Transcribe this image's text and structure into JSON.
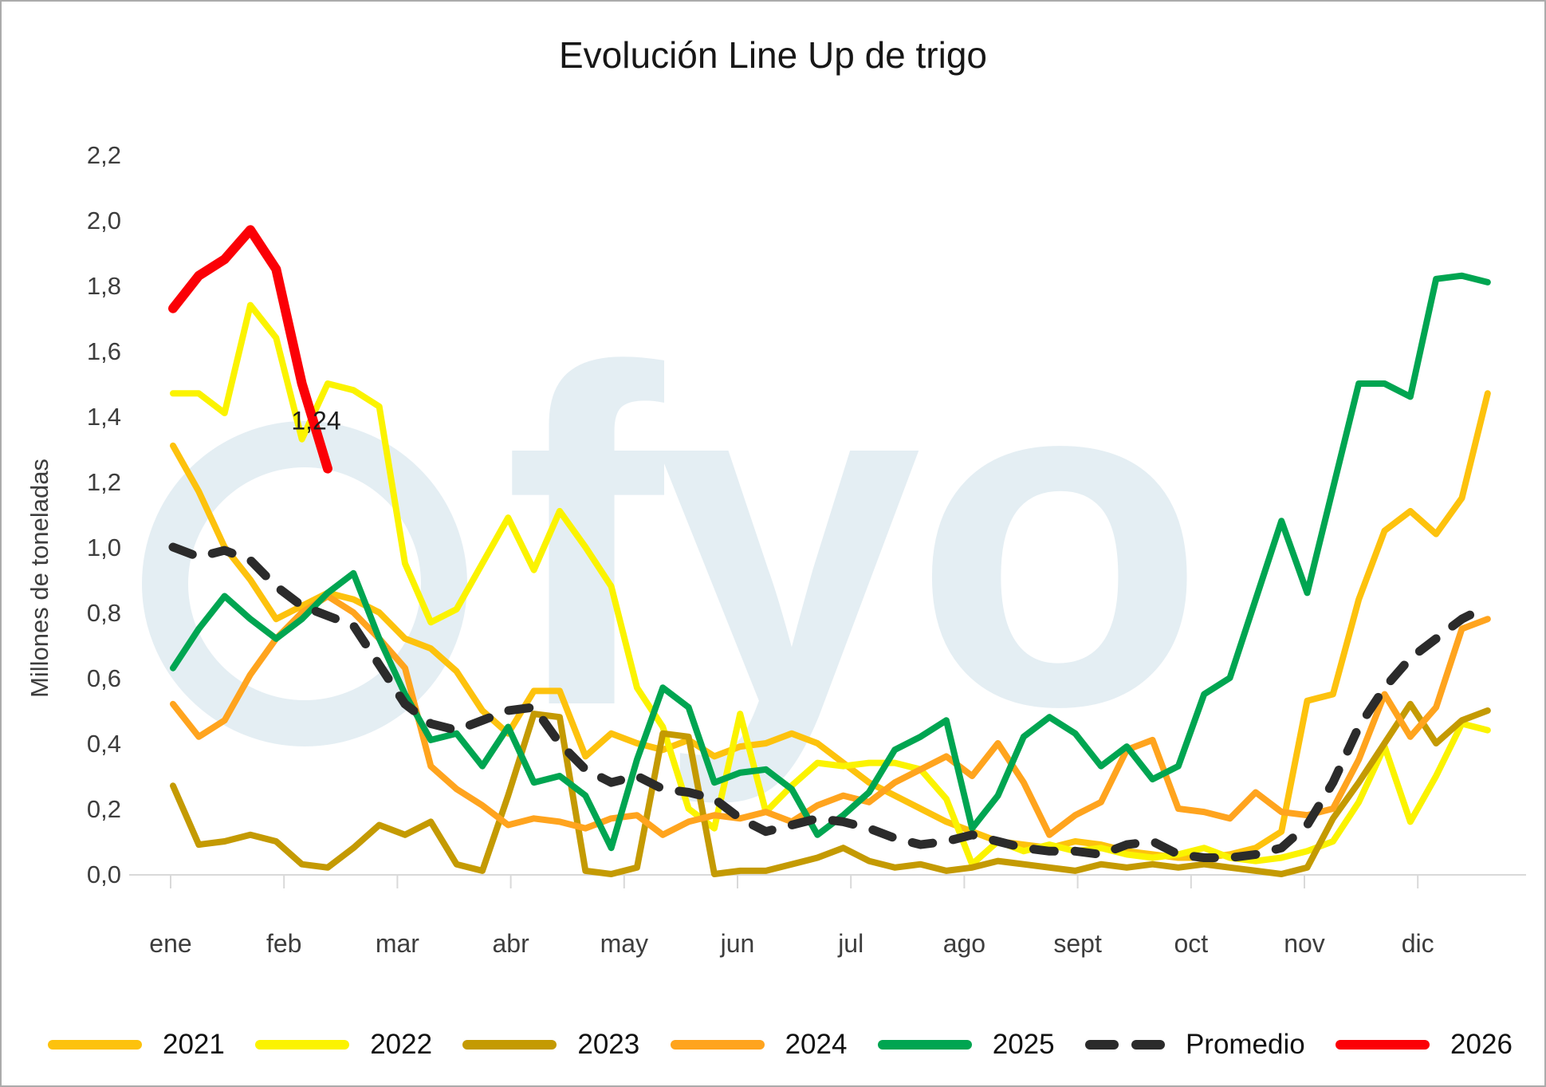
{
  "title": "Evolución Line Up de trigo",
  "y_axis": {
    "label": "Millones de toneladas",
    "ticks": [
      "0,0",
      "0,2",
      "0,4",
      "0,6",
      "0,8",
      "1,0",
      "1,2",
      "1,4",
      "1,6",
      "1,8",
      "2,0",
      "2,2"
    ],
    "min": 0.0,
    "max": 2.2,
    "step": 0.2
  },
  "x_axis": {
    "months": [
      "ene",
      "feb",
      "mar",
      "abr",
      "may",
      "jun",
      "jul",
      "ago",
      "sept",
      "oct",
      "nov",
      "dic"
    ]
  },
  "annotation": {
    "text": "1,24",
    "week": 6.8,
    "value": 1.36
  },
  "watermark": {
    "text": "fyo",
    "color": "#e4eef3"
  },
  "legend": [
    {
      "id": "y2021",
      "label": "2021",
      "color": "#fdc20d",
      "dashed": false
    },
    {
      "id": "y2022",
      "label": "2022",
      "color": "#fbf300",
      "dashed": false
    },
    {
      "id": "y2023",
      "label": "2023",
      "color": "#c49a02",
      "dashed": false
    },
    {
      "id": "y2024",
      "label": "2024",
      "color": "#ffa41e",
      "dashed": false
    },
    {
      "id": "y2025",
      "label": "2025",
      "color": "#00a551",
      "dashed": false
    },
    {
      "id": "promedio",
      "label": "Promedio",
      "color": "#2b2b2b",
      "dashed": true
    },
    {
      "id": "y2026",
      "label": "2026",
      "color": "#fb0006",
      "dashed": false
    }
  ],
  "chart_data": {
    "type": "line",
    "title": "Evolución Line Up de trigo",
    "xlabel": "",
    "ylabel": "Millones de toneladas",
    "ylim": [
      0.0,
      2.2
    ],
    "x_unit": "semana del año (1-52)",
    "grid": false,
    "legend_position": "bottom",
    "x": [
      1,
      2,
      3,
      4,
      5,
      6,
      7,
      8,
      9,
      10,
      11,
      12,
      13,
      14,
      15,
      16,
      17,
      18,
      19,
      20,
      21,
      22,
      23,
      24,
      25,
      26,
      27,
      28,
      29,
      30,
      31,
      32,
      33,
      34,
      35,
      36,
      37,
      38,
      39,
      40,
      41,
      42,
      43,
      44,
      45,
      46,
      47,
      48,
      49,
      50,
      51,
      52
    ],
    "series": [
      {
        "name": "2021",
        "color": "#fdc20d",
        "width": 8,
        "dashed": false,
        "values": [
          1.31,
          1.17,
          1.0,
          0.9,
          0.78,
          0.82,
          0.86,
          0.84,
          0.8,
          0.72,
          0.69,
          0.62,
          0.5,
          0.43,
          0.56,
          0.56,
          0.36,
          0.43,
          0.4,
          0.38,
          0.41,
          0.36,
          0.39,
          0.4,
          0.43,
          0.4,
          0.34,
          0.28,
          0.24,
          0.2,
          0.16,
          0.13,
          0.1,
          0.09,
          0.08,
          0.1,
          0.09,
          0.07,
          0.06,
          0.05,
          0.05,
          0.06,
          0.08,
          0.13,
          0.53,
          0.55,
          0.84,
          1.05,
          1.11,
          1.04,
          1.15,
          1.47
        ]
      },
      {
        "name": "2022",
        "color": "#fbf300",
        "width": 8,
        "dashed": false,
        "values": [
          1.47,
          1.47,
          1.41,
          1.74,
          1.64,
          1.33,
          1.5,
          1.48,
          1.43,
          0.95,
          0.77,
          0.81,
          0.95,
          1.09,
          0.93,
          1.11,
          1.0,
          0.88,
          0.57,
          0.45,
          0.2,
          0.14,
          0.49,
          0.19,
          0.27,
          0.34,
          0.33,
          0.34,
          0.34,
          0.32,
          0.23,
          0.03,
          0.1,
          0.07,
          0.09,
          0.07,
          0.08,
          0.06,
          0.05,
          0.06,
          0.08,
          0.05,
          0.04,
          0.05,
          0.07,
          0.1,
          0.22,
          0.39,
          0.16,
          0.3,
          0.46,
          0.44
        ]
      },
      {
        "name": "2023",
        "color": "#c49a02",
        "width": 8,
        "dashed": false,
        "values": [
          0.27,
          0.09,
          0.1,
          0.12,
          0.1,
          0.03,
          0.02,
          0.08,
          0.15,
          0.12,
          0.16,
          0.03,
          0.01,
          0.24,
          0.49,
          0.48,
          0.01,
          0.0,
          0.02,
          0.43,
          0.42,
          0.0,
          0.01,
          0.01,
          0.03,
          0.05,
          0.08,
          0.04,
          0.02,
          0.03,
          0.01,
          0.02,
          0.04,
          0.03,
          0.02,
          0.01,
          0.03,
          0.02,
          0.03,
          0.02,
          0.03,
          0.02,
          0.01,
          0.0,
          0.02,
          0.17,
          0.28,
          0.4,
          0.52,
          0.4,
          0.47,
          0.5
        ]
      },
      {
        "name": "2024",
        "color": "#ffa41e",
        "width": 8,
        "dashed": false,
        "values": [
          0.52,
          0.42,
          0.47,
          0.61,
          0.72,
          0.8,
          0.85,
          0.8,
          0.72,
          0.63,
          0.33,
          0.26,
          0.21,
          0.15,
          0.17,
          0.16,
          0.14,
          0.17,
          0.18,
          0.12,
          0.16,
          0.18,
          0.17,
          0.19,
          0.16,
          0.21,
          0.24,
          0.22,
          0.28,
          0.32,
          0.36,
          0.3,
          0.4,
          0.28,
          0.12,
          0.18,
          0.22,
          0.38,
          0.41,
          0.2,
          0.19,
          0.17,
          0.25,
          0.19,
          0.18,
          0.2,
          0.35,
          0.55,
          0.42,
          0.51,
          0.75,
          0.78
        ]
      },
      {
        "name": "2025",
        "color": "#00a551",
        "width": 8,
        "dashed": false,
        "values": [
          0.63,
          0.75,
          0.85,
          0.78,
          0.72,
          0.78,
          0.86,
          0.92,
          0.72,
          0.55,
          0.41,
          0.43,
          0.33,
          0.45,
          0.28,
          0.3,
          0.24,
          0.08,
          0.35,
          0.57,
          0.51,
          0.28,
          0.31,
          0.32,
          0.26,
          0.12,
          0.18,
          0.25,
          0.38,
          0.42,
          0.47,
          0.14,
          0.24,
          0.42,
          0.48,
          0.43,
          0.33,
          0.39,
          0.29,
          0.33,
          0.55,
          0.6,
          0.84,
          1.08,
          0.86,
          1.18,
          1.5,
          1.5,
          1.46,
          1.82,
          1.83,
          1.81
        ]
      },
      {
        "name": "Promedio",
        "color": "#2b2b2b",
        "width": 11,
        "dashed": true,
        "values": [
          1.0,
          0.97,
          0.99,
          0.96,
          0.88,
          0.82,
          0.79,
          0.76,
          0.64,
          0.52,
          0.46,
          0.44,
          0.47,
          0.5,
          0.51,
          0.4,
          0.32,
          0.28,
          0.3,
          0.26,
          0.25,
          0.23,
          0.17,
          0.13,
          0.15,
          0.17,
          0.16,
          0.14,
          0.11,
          0.09,
          0.1,
          0.12,
          0.1,
          0.08,
          0.07,
          0.07,
          0.06,
          0.09,
          0.1,
          0.06,
          0.05,
          0.05,
          0.06,
          0.08,
          0.15,
          0.28,
          0.45,
          0.57,
          0.66,
          0.72,
          0.78,
          0.82
        ]
      },
      {
        "name": "2026",
        "color": "#fb0006",
        "width": 12,
        "dashed": false,
        "values": [
          1.73,
          1.83,
          1.88,
          1.97,
          1.85,
          1.5,
          1.24
        ]
      }
    ],
    "annotations": [
      {
        "text": "1,24",
        "series": "2026",
        "week": 7,
        "value": 1.24
      }
    ]
  }
}
